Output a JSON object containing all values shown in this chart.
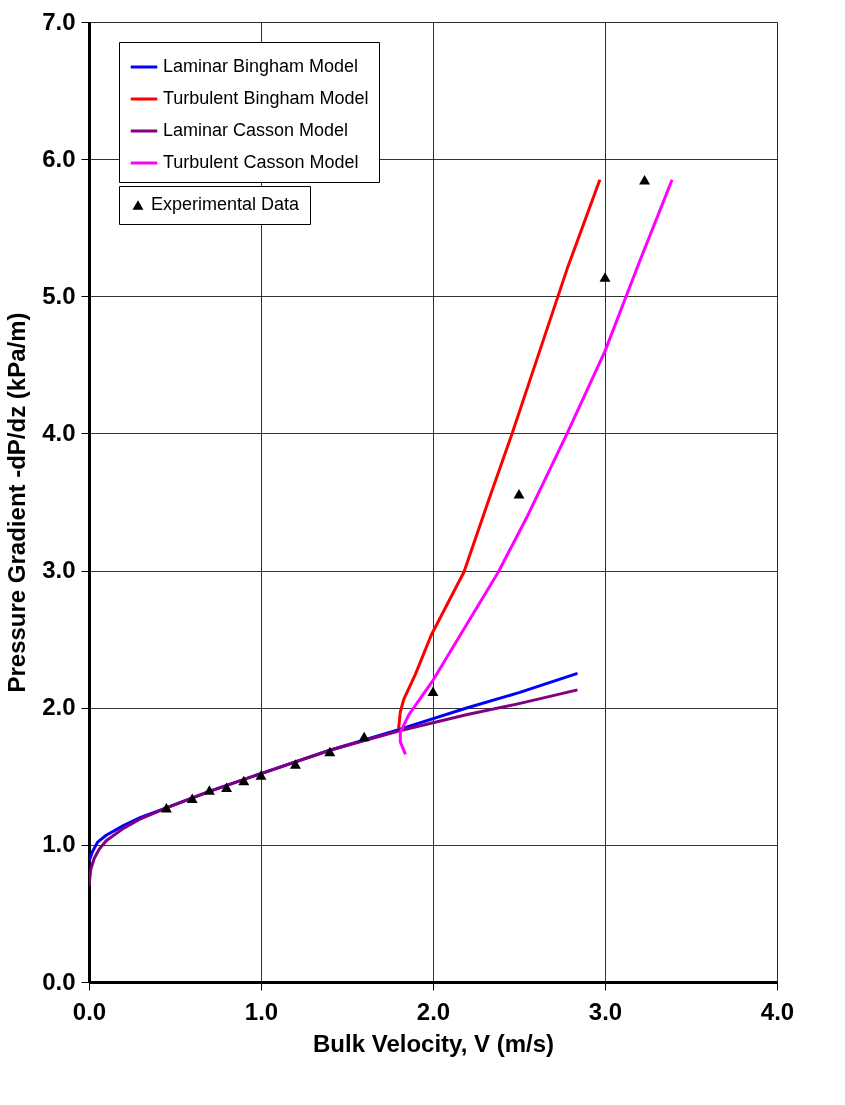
{
  "chart_data": {
    "type": "line",
    "xlabel": "Bulk Velocity, V (m/s)",
    "ylabel": "Pressure Gradient -dP/dz (kPa/m)",
    "xlim": [
      0,
      4
    ],
    "xticks": [
      {
        "value": 0,
        "label": "0.0"
      },
      {
        "value": 1,
        "label": "1.0"
      },
      {
        "value": 2,
        "label": "2.0"
      },
      {
        "value": 3,
        "label": "3.0"
      },
      {
        "value": 4,
        "label": "4.0"
      }
    ],
    "ylim": [
      0,
      7
    ],
    "yticks": [
      {
        "value": 0,
        "label": "0.0"
      },
      {
        "value": 1,
        "label": "1.0"
      },
      {
        "value": 2,
        "label": "2.0"
      },
      {
        "value": 3,
        "label": "3.0"
      },
      {
        "value": 4,
        "label": "4.0"
      },
      {
        "value": 5,
        "label": "5.0"
      },
      {
        "value": 6,
        "label": "6.0"
      },
      {
        "value": 7,
        "label": "7.0"
      }
    ],
    "grid": true,
    "legend": "top left",
    "line_style": "solid",
    "series": [
      {
        "name": "Laminar Bingham Model",
        "color": "#0000ff",
        "x": [
          0,
          0.02,
          0.05,
          0.1,
          0.2,
          0.3,
          0.45,
          0.7,
          1.0,
          1.4,
          1.8,
          2.2,
          2.5,
          2.84
        ],
        "values": [
          0.88,
          0.95,
          1.02,
          1.07,
          1.14,
          1.2,
          1.27,
          1.39,
          1.52,
          1.69,
          1.84,
          2.0,
          2.11,
          2.25
        ]
      },
      {
        "name": "Turbulent Bingham Model",
        "color": "#ff0000",
        "x": [
          1.8,
          1.81,
          1.83,
          1.9,
          1.99,
          2.18,
          2.32,
          2.46,
          2.62,
          2.78,
          2.97
        ],
        "values": [
          1.85,
          1.97,
          2.06,
          2.25,
          2.53,
          2.99,
          3.5,
          4.0,
          4.6,
          5.2,
          5.85
        ]
      },
      {
        "name": "Laminar Casson Model",
        "color": "#800080",
        "x": [
          0,
          0.01,
          0.03,
          0.06,
          0.1,
          0.2,
          0.3,
          0.45,
          0.7,
          1.0,
          1.4,
          1.8,
          2.2,
          2.5,
          2.84
        ],
        "values": [
          0.7,
          0.82,
          0.9,
          0.97,
          1.03,
          1.12,
          1.19,
          1.27,
          1.39,
          1.52,
          1.69,
          1.83,
          1.95,
          2.03,
          2.13
        ]
      },
      {
        "name": "Turbulent Casson Model",
        "color": "#ff00ff",
        "x": [
          1.84,
          1.81,
          1.81,
          1.86,
          2.0,
          2.38,
          2.55,
          2.78,
          3.0,
          3.2,
          3.39
        ],
        "values": [
          1.66,
          1.75,
          1.82,
          1.95,
          2.2,
          2.99,
          3.4,
          4.0,
          4.6,
          5.25,
          5.85
        ]
      },
      {
        "name": "Experimental Data",
        "color": "#000000",
        "type": "scatter",
        "marker": "triangle",
        "x": [
          0.45,
          0.6,
          0.7,
          0.8,
          0.9,
          1.0,
          1.2,
          1.4,
          1.6,
          2.0,
          2.5,
          3.0,
          3.23
        ],
        "values": [
          1.27,
          1.34,
          1.4,
          1.42,
          1.47,
          1.51,
          1.59,
          1.68,
          1.79,
          2.12,
          3.56,
          5.14,
          5.85
        ]
      }
    ]
  }
}
